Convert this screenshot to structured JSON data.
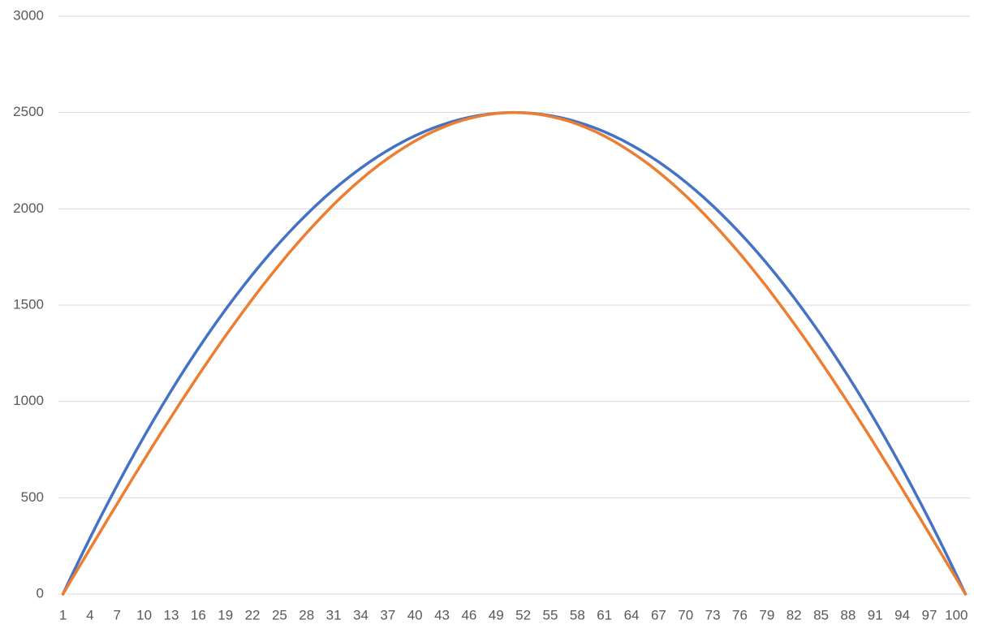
{
  "chart_data": {
    "type": "line",
    "categories": [
      1,
      null,
      null,
      4,
      null,
      null,
      7,
      null,
      null,
      10,
      null,
      null,
      13,
      null,
      null,
      16,
      null,
      null,
      19,
      null,
      null,
      22,
      null,
      null,
      25,
      null,
      null,
      28,
      null,
      null,
      31,
      null,
      null,
      34,
      null,
      null,
      37,
      null,
      null,
      40,
      null,
      null,
      43,
      null,
      null,
      46,
      null,
      null,
      49,
      null,
      null,
      52,
      null,
      null,
      55,
      null,
      null,
      58,
      null,
      null,
      61,
      null,
      null,
      64,
      null,
      null,
      67,
      null,
      null,
      70,
      null,
      null,
      73,
      null,
      null,
      76,
      null,
      null,
      79,
      null,
      null,
      82,
      null,
      null,
      85,
      null,
      null,
      88,
      null,
      null,
      91,
      null,
      null,
      94,
      null,
      null,
      97,
      null,
      null,
      100,
      null
    ],
    "series": [
      {
        "color": "#4472c4",
        "values": [
          0,
          99,
          196,
          291,
          384,
          475,
          564,
          651,
          736,
          819,
          900,
          979,
          1056,
          1131,
          1204,
          1275,
          1344,
          1411,
          1476,
          1539,
          1600,
          1659,
          1716,
          1771,
          1824,
          1875,
          1924,
          1971,
          2016,
          2059,
          2100,
          2139,
          2176,
          2211,
          2244,
          2275,
          2304,
          2331,
          2356,
          2379,
          2400,
          2419,
          2436,
          2451,
          2464,
          2475,
          2484,
          2491,
          2496,
          2499,
          2500,
          2499,
          2496,
          2491,
          2484,
          2475,
          2464,
          2451,
          2436,
          2419,
          2400,
          2379,
          2356,
          2331,
          2304,
          2275,
          2244,
          2211,
          2176,
          2139,
          2100,
          2059,
          2016,
          1971,
          1924,
          1875,
          1824,
          1771,
          1716,
          1659,
          1600,
          1539,
          1476,
          1411,
          1344,
          1275,
          1204,
          1131,
          1056,
          979,
          900,
          819,
          736,
          651,
          564,
          475,
          384,
          291,
          196,
          99,
          0
        ]
      },
      {
        "color": "#ed7d31",
        "values": [
          0,
          79,
          157,
          235,
          313,
          391,
          468,
          545,
          622,
          697,
          773,
          847,
          920,
          993,
          1064,
          1135,
          1204,
          1273,
          1340,
          1405,
          1469,
          1532,
          1594,
          1653,
          1711,
          1768,
          1822,
          1875,
          1926,
          1975,
          2023,
          2068,
          2111,
          2152,
          2191,
          2228,
          2262,
          2294,
          2324,
          2352,
          2378,
          2401,
          2421,
          2440,
          2456,
          2469,
          2480,
          2489,
          2495,
          2499,
          2500,
          2499,
          2495,
          2489,
          2480,
          2469,
          2456,
          2440,
          2421,
          2401,
          2378,
          2352,
          2324,
          2294,
          2262,
          2228,
          2191,
          2152,
          2111,
          2068,
          2023,
          1975,
          1926,
          1875,
          1822,
          1768,
          1711,
          1653,
          1594,
          1532,
          1469,
          1405,
          1340,
          1273,
          1204,
          1135,
          1064,
          993,
          920,
          847,
          773,
          697,
          622,
          545,
          468,
          391,
          313,
          235,
          157,
          79,
          0
        ]
      }
    ],
    "ylim": [
      0,
      3000
    ],
    "yticks": [
      0,
      500,
      1000,
      1500,
      2000,
      2500,
      3000
    ],
    "grid": true
  }
}
